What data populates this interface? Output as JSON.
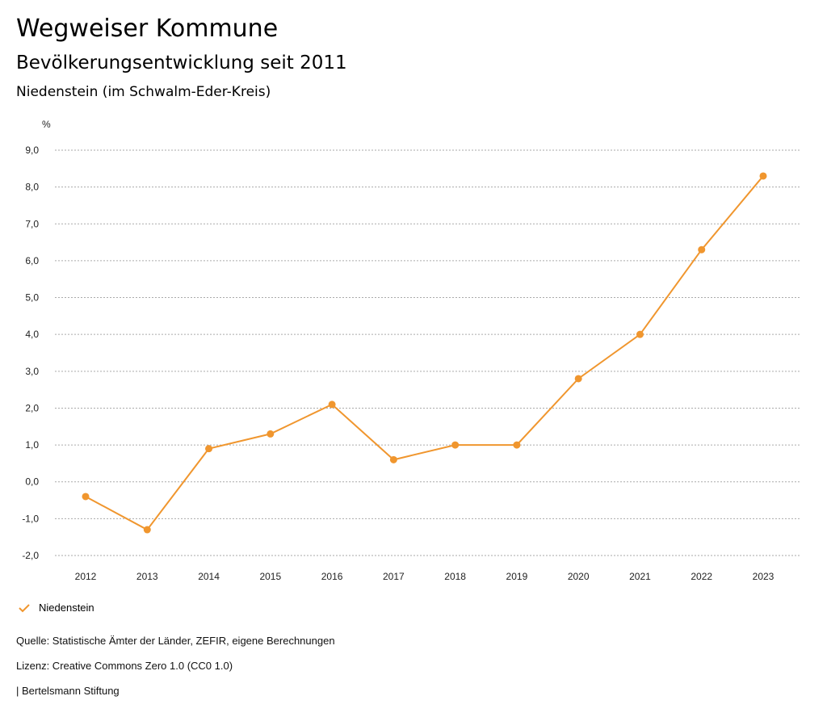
{
  "header": {
    "title": "Wegweiser Kommune",
    "subtitle": "Bevölkerungsentwicklung seit 2011",
    "region": "Niedenstein (im Schwalm-Eder-Kreis)"
  },
  "chart_data": {
    "type": "line",
    "title": "Bevölkerungsentwicklung seit 2011",
    "ylabel": "%",
    "xlabel": "",
    "ylim": [
      -2.0,
      9.0
    ],
    "yticks": [
      "9,0",
      "8,0",
      "7,0",
      "6,0",
      "5,0",
      "4,0",
      "3,0",
      "2,0",
      "1,0",
      "0,0",
      "-1,0",
      "-2,0"
    ],
    "ytick_values": [
      9,
      8,
      7,
      6,
      5,
      4,
      3,
      2,
      1,
      0,
      -1,
      -2
    ],
    "categories": [
      "2012",
      "2013",
      "2014",
      "2015",
      "2016",
      "2017",
      "2018",
      "2019",
      "2020",
      "2021",
      "2022",
      "2023"
    ],
    "series": [
      {
        "name": "Niedenstein",
        "color": "#f0962e",
        "values": [
          -0.4,
          -1.3,
          0.9,
          1.3,
          2.1,
          0.6,
          1.0,
          1.0,
          2.8,
          4.0,
          6.3,
          8.3
        ]
      }
    ],
    "grid": true,
    "legend": "bottom-left"
  },
  "footer": {
    "source": "Quelle: Statistische Ämter der Länder, ZEFIR, eigene Berechnungen",
    "license": "Lizenz: Creative Commons Zero 1.0 (CC0 1.0)",
    "publisher": "| Bertelsmann Stiftung"
  }
}
